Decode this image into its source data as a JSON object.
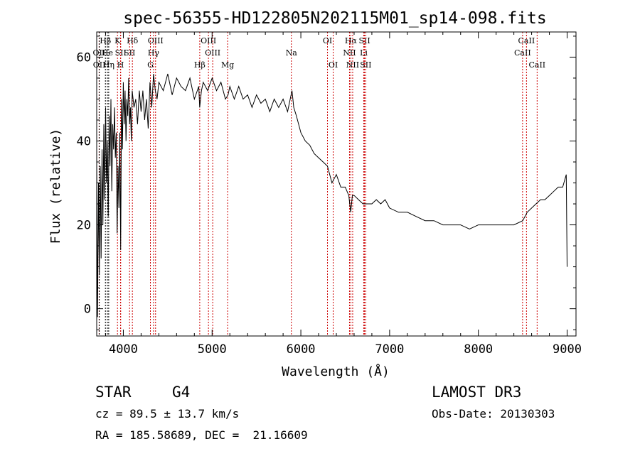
{
  "chart_data": {
    "type": "line",
    "title": "spec-56355-HD122805N202115M01_sp14-098.fits",
    "xlabel": "Wavelength (Å)",
    "ylabel": "Flux (relative)",
    "xlim": [
      3700,
      9100
    ],
    "ylim": [
      -6.5,
      66
    ],
    "xticks": [
      4000,
      5000,
      6000,
      7000,
      8000,
      9000
    ],
    "yticks": [
      0,
      20,
      40,
      60
    ],
    "series": [
      {
        "name": "spectrum",
        "x": [
          3700,
          3710,
          3720,
          3730,
          3740,
          3750,
          3760,
          3770,
          3780,
          3790,
          3800,
          3810,
          3820,
          3830,
          3840,
          3850,
          3860,
          3870,
          3880,
          3890,
          3900,
          3910,
          3920,
          3930,
          3940,
          3950,
          3960,
          3970,
          3980,
          3990,
          4000,
          4010,
          4020,
          4030,
          4040,
          4050,
          4060,
          4070,
          4080,
          4090,
          4100,
          4120,
          4140,
          4160,
          4180,
          4200,
          4220,
          4240,
          4260,
          4280,
          4300,
          4320,
          4340,
          4360,
          4380,
          4400,
          4450,
          4500,
          4550,
          4600,
          4650,
          4700,
          4750,
          4800,
          4850,
          4860,
          4880,
          4900,
          4950,
          5000,
          5050,
          5100,
          5150,
          5180,
          5200,
          5250,
          5300,
          5350,
          5400,
          5450,
          5500,
          5550,
          5600,
          5650,
          5700,
          5750,
          5800,
          5850,
          5880,
          5900,
          5920,
          5950,
          6000,
          6050,
          6100,
          6150,
          6200,
          6250,
          6300,
          6350,
          6400,
          6450,
          6500,
          6540,
          6562,
          6580,
          6600,
          6650,
          6700,
          6750,
          6800,
          6850,
          6900,
          6950,
          7000,
          7100,
          7200,
          7300,
          7400,
          7500,
          7600,
          7700,
          7800,
          7900,
          8000,
          8100,
          8200,
          8300,
          8400,
          8500,
          8550,
          8600,
          8650,
          8700,
          8750,
          8800,
          8850,
          8900,
          8950,
          8990,
          9000
        ],
        "y": [
          36,
          -2,
          30,
          8,
          34,
          12,
          38,
          20,
          44,
          26,
          48,
          30,
          40,
          22,
          46,
          34,
          50,
          28,
          44,
          38,
          48,
          36,
          42,
          18,
          34,
          24,
          42,
          14,
          50,
          38,
          54,
          44,
          52,
          40,
          50,
          46,
          55,
          44,
          48,
          40,
          52,
          48,
          50,
          44,
          52,
          47,
          52,
          45,
          50,
          43,
          54,
          48,
          56,
          52,
          50,
          54,
          52,
          56,
          51,
          55,
          53,
          52,
          55,
          50,
          53,
          48,
          52,
          54,
          52,
          55,
          52,
          54,
          50,
          51,
          53,
          50,
          53,
          50,
          51,
          48,
          51,
          49,
          50,
          47,
          50,
          48,
          50,
          47,
          50,
          52,
          48,
          46,
          42,
          40,
          39,
          37,
          36,
          35,
          34,
          30,
          32,
          29,
          29,
          27,
          23,
          27,
          27,
          26,
          25,
          25,
          25,
          26,
          25,
          26,
          24,
          23,
          23,
          22,
          21,
          21,
          20,
          20,
          20,
          19,
          20,
          20,
          20,
          20,
          20,
          21,
          23,
          24,
          25,
          26,
          26,
          27,
          28,
          29,
          29,
          32,
          10
        ]
      }
    ],
    "line_markers": [
      {
        "label": "Hβ",
        "wave": 3798,
        "row": 0,
        "color": "#000000"
      },
      {
        "label": "OII",
        "wave": 3727,
        "row": 1,
        "color": "#cc0000"
      },
      {
        "label": "OII",
        "wave": 3729,
        "row": 2,
        "color": "#000000"
      },
      {
        "label": "He",
        "wave": 3820,
        "row": 1,
        "color": "#000000"
      },
      {
        "label": "Hη",
        "wave": 3835,
        "row": 2,
        "color": "#000000"
      },
      {
        "label": "K",
        "wave": 3934,
        "row": 0,
        "color": "#cc0000"
      },
      {
        "label": "SII",
        "wave": 3970,
        "row": 1,
        "color": "#cc0000"
      },
      {
        "label": "H",
        "wave": 3969,
        "row": 2,
        "color": "#cc0000"
      },
      {
        "label": "Hδ",
        "wave": 4102,
        "row": 0,
        "color": "#cc0000"
      },
      {
        "label": "SII",
        "wave": 4070,
        "row": 1,
        "color": "#cc0000"
      },
      {
        "label": "OIII",
        "wave": 4363,
        "row": 0,
        "color": "#cc0000"
      },
      {
        "label": "Hγ",
        "wave": 4340,
        "row": 1,
        "color": "#cc0000"
      },
      {
        "label": "G",
        "wave": 4305,
        "row": 2,
        "color": "#cc0000"
      },
      {
        "label": "Hβ",
        "wave": 4861,
        "row": 2,
        "color": "#cc0000"
      },
      {
        "label": "OIII",
        "wave": 4959,
        "row": 0,
        "color": "#cc0000"
      },
      {
        "label": "OIII",
        "wave": 5007,
        "row": 1,
        "color": "#cc0000"
      },
      {
        "label": "Mg",
        "wave": 5175,
        "row": 2,
        "color": "#cc0000"
      },
      {
        "label": "Na",
        "wave": 5893,
        "row": 1,
        "color": "#cc0000"
      },
      {
        "label": "OI",
        "wave": 6300,
        "row": 0,
        "color": "#cc0000"
      },
      {
        "label": "OI",
        "wave": 6364,
        "row": 2,
        "color": "#cc0000"
      },
      {
        "label": "Hα",
        "wave": 6563,
        "row": 0,
        "color": "#cc0000"
      },
      {
        "label": "NII",
        "wave": 6548,
        "row": 1,
        "color": "#cc0000"
      },
      {
        "label": "NII",
        "wave": 6584,
        "row": 2,
        "color": "#cc0000"
      },
      {
        "label": "SII",
        "wave": 6717,
        "row": 0,
        "color": "#cc0000"
      },
      {
        "label": "Li",
        "wave": 6708,
        "row": 1,
        "color": "#cc0000"
      },
      {
        "label": "SII",
        "wave": 6731,
        "row": 2,
        "color": "#cc0000"
      },
      {
        "label": "CaII",
        "wave": 8542,
        "row": 0,
        "color": "#cc0000"
      },
      {
        "label": "CaII",
        "wave": 8498,
        "row": 1,
        "color": "#cc0000"
      },
      {
        "label": "CaII",
        "wave": 8662,
        "row": 2,
        "color": "#cc0000"
      }
    ]
  },
  "info": {
    "object_type": "STAR",
    "subclass": "G4",
    "survey": "LAMOST DR3",
    "cz": "cz = 89.5 ± 13.7 km/s",
    "obs_date": "Obs-Date: 20130303",
    "coords": "RA = 185.58689, DEC =  21.16609"
  }
}
